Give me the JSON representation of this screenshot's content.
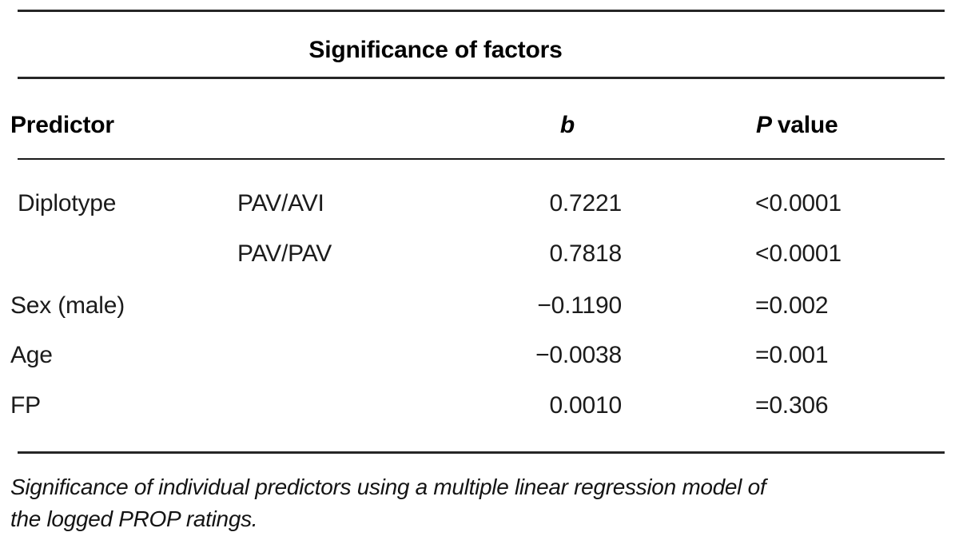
{
  "table": {
    "title": "Significance of factors",
    "columns": {
      "predictor": "Predictor",
      "b": "b",
      "p_symbol": "P",
      "p_label": "value"
    },
    "rows": [
      {
        "predictor": "Diplotype",
        "level": "PAV/AVI",
        "b": "0.7221",
        "p": "<0.0001"
      },
      {
        "predictor": "",
        "level": "PAV/PAV",
        "b": "0.7818",
        "p": "<0.0001"
      },
      {
        "predictor": "Sex (male)",
        "level": "",
        "b": "−0.1190",
        "p": "=0.002"
      },
      {
        "predictor": "Age",
        "level": "",
        "b": "−0.0038",
        "p": "=0.001"
      },
      {
        "predictor": "FP",
        "level": "",
        "b": "0.0010",
        "p": "=0.306"
      }
    ],
    "caption_lines": [
      "Significance of individual predictors using a multiple linear regression model of",
      "the logged PROP ratings."
    ]
  },
  "colors": {
    "background": "#ffffff",
    "text": "#1b1b1b",
    "rule": "#262626"
  }
}
